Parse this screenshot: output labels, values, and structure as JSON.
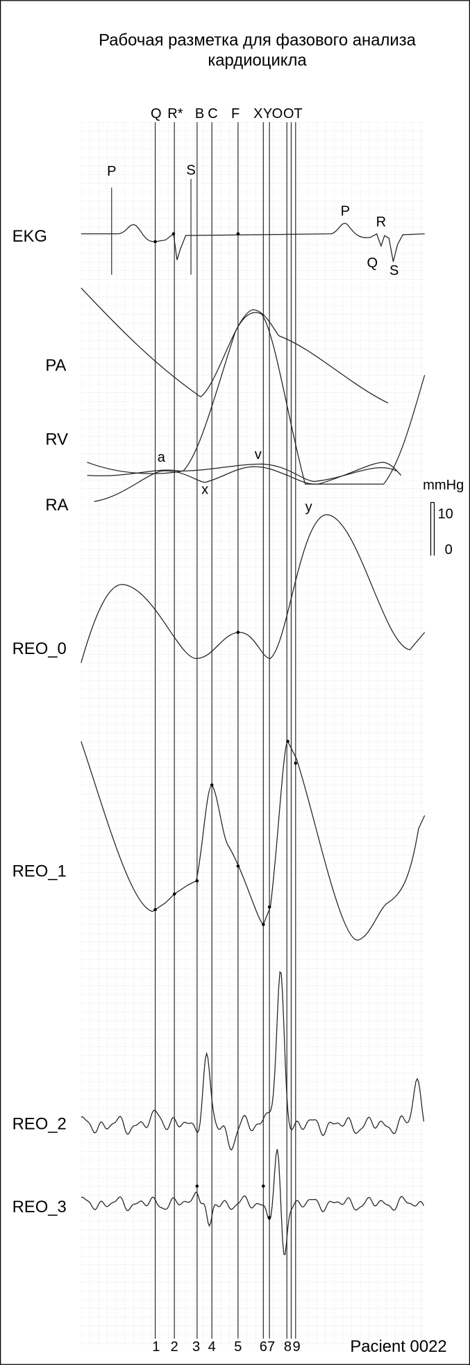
{
  "header": {
    "title_line1": "Рабочая разметка для фазового анализа",
    "title_line2": "кардиоцикла"
  },
  "top_markers": [
    "Q",
    "R*",
    "B",
    "C",
    "F",
    "X",
    "Y",
    "O",
    "O",
    "T"
  ],
  "bottom_numbers": [
    "1",
    "2",
    "3",
    "4",
    "5",
    "6",
    "7",
    "8",
    "9"
  ],
  "channels": [
    "EKG",
    "PA",
    "RV",
    "RA",
    "REO_0",
    "REO_1",
    "REO_2",
    "REO_3"
  ],
  "annotations": {
    "ekg_p1": "P",
    "ekg_s1": "S",
    "ekg_p2": "P",
    "ekg_r2": "R",
    "ekg_q2": "Q",
    "ekg_s2": "S",
    "ra_a": "a",
    "ra_x": "x",
    "ra_v": "v",
    "ra_y": "y"
  },
  "scale": {
    "unit": "mmHg",
    "top": "10",
    "bottom": "0"
  },
  "footer": "Pacient 0022"
}
